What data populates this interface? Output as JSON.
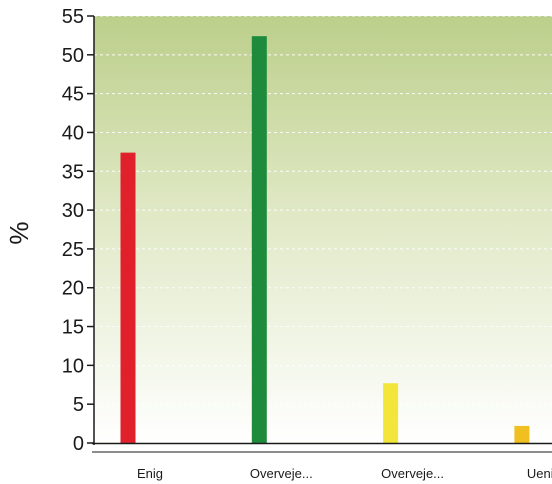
{
  "chart_data": {
    "type": "bar",
    "title": "",
    "xlabel": "",
    "ylabel": "%",
    "ylim": [
      0,
      55
    ],
    "yticks": [
      0,
      5,
      10,
      15,
      20,
      25,
      30,
      35,
      40,
      45,
      50,
      55
    ],
    "ytick_labels": [
      "0",
      "5",
      "10",
      "15",
      "20",
      "25",
      "30",
      "35",
      "40",
      "45",
      "50",
      "55"
    ],
    "categories": [
      "Enig",
      "Overveje...",
      "Overveje...",
      "Uenig"
    ],
    "values": [
      37.4,
      52.4,
      7.7,
      2.2
    ],
    "bar_colors": [
      "#e0202b",
      "#1e8a3c",
      "#f2e63a",
      "#f0c020"
    ],
    "grid": true,
    "grid_style": "dashed",
    "background_gradient": [
      "#bccf8a",
      "#ffffff"
    ],
    "axis_color": "#1a1a1a"
  }
}
